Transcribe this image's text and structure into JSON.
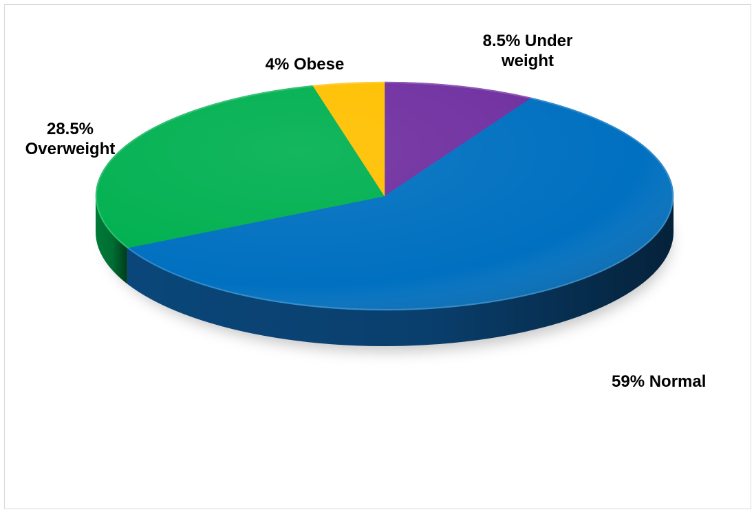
{
  "chart_data": {
    "type": "pie",
    "title": "",
    "start_angle_deg": 0,
    "direction": "clockwise",
    "slices": [
      {
        "label": "Under weight",
        "value": 8.5,
        "color": "#7030a0",
        "side_color": "#4a1f6b",
        "label_lines": [
          "8.5% Under",
          "weight"
        ]
      },
      {
        "label": "Normal",
        "value": 59,
        "color": "#0070c0",
        "side_color": "#0b4a80",
        "label_lines": [
          "59% Normal"
        ]
      },
      {
        "label": "Overweight",
        "value": 28.5,
        "color": "#00b050",
        "side_color": "#00803a",
        "label_lines": [
          "28.5%",
          "Overweight"
        ]
      },
      {
        "label": "Obese",
        "value": 4,
        "color": "#ffc000",
        "side_color": "#b88a00",
        "label_lines": [
          "4% Obese"
        ]
      }
    ]
  }
}
